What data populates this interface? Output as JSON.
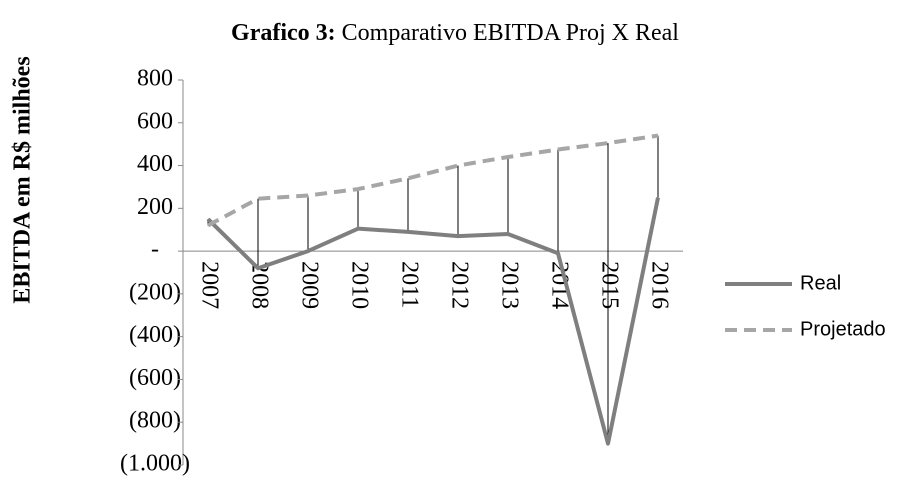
{
  "chart_data": {
    "type": "line",
    "title": [
      "Grafico 3:",
      "Comparativo EBITDA Proj X Real"
    ],
    "y_label": "EBITDA em R$ milhões",
    "categories": [
      "2007",
      "2008",
      "2009",
      "2010",
      "2011",
      "2012",
      "2013",
      "2014",
      "2015",
      "2016"
    ],
    "series": [
      {
        "name": "Real",
        "color": "#7f7f7f",
        "dash": false,
        "values": [
          150,
          -80,
          0,
          105,
          90,
          70,
          80,
          -10,
          -900,
          250
        ]
      },
      {
        "name": "Projetado",
        "color": "#a6a6a6",
        "dash": true,
        "values": [
          120,
          245,
          260,
          290,
          340,
          400,
          440,
          475,
          505,
          540
        ]
      }
    ],
    "ylim": [
      -1000,
      800
    ],
    "yticks": [
      800,
      600,
      400,
      200,
      {
        "value": 0,
        "label": "-"
      },
      {
        "value": -200,
        "label": "(200)"
      },
      {
        "value": -400,
        "label": "(400)"
      },
      {
        "value": -600,
        "label": "(600)"
      },
      {
        "value": -800,
        "label": "(800)"
      },
      {
        "value": -1000,
        "label": "(1.000)"
      }
    ],
    "drop_lines": true,
    "legend": "right"
  }
}
